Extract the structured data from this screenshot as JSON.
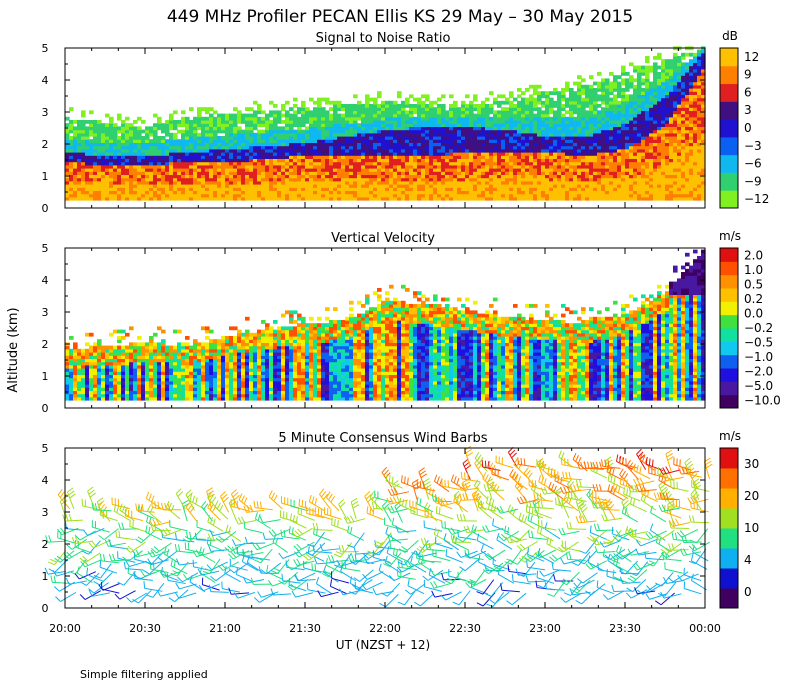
{
  "title": "449 MHz Profiler PECAN Ellis KS 29 May – 30 May 2015",
  "ylabel": "Altitude (km)",
  "xlabel": "UT  (NZST + 12)",
  "note": "Simple filtering applied",
  "x_ticks": [
    "20:00",
    "20:30",
    "21:00",
    "21:30",
    "22:00",
    "22:30",
    "23:00",
    "23:30",
    "00:00"
  ],
  "y_ticks": [
    "0",
    "1",
    "2",
    "3",
    "4",
    "5"
  ],
  "colors": {
    "snr": [
      "#80f020",
      "#30d070",
      "#10b8f0",
      "#0a60f0",
      "#2010d0",
      "#401080",
      "#e02020",
      "#ff8000",
      "#ffc000"
    ],
    "vv": [
      "#400060",
      "#4818a0",
      "#2010e0",
      "#1060f0",
      "#10c8f0",
      "#10e0a0",
      "#40e040",
      "#f0f000",
      "#ffc000",
      "#ff9000",
      "#ff5000",
      "#e01010"
    ],
    "wind": [
      "#400060",
      "#1010d0",
      "#10b0f0",
      "#20e080",
      "#a0e020",
      "#ffb000",
      "#ff7000",
      "#e01010"
    ]
  },
  "chart_data": [
    {
      "type": "heatmap",
      "title": "Signal to Noise Ratio",
      "xlabel": "UT  (NZST + 12)",
      "ylabel": "Altitude (km)",
      "x_range": [
        0,
        240
      ],
      "x_unit": "minutes after 20:00 UT",
      "ylim": [
        0,
        5
      ],
      "colorbar": {
        "unit": "dB",
        "labels": [
          "12",
          "9",
          "6",
          "3",
          "0",
          "−3",
          "−6",
          "−9",
          "−12"
        ],
        "values": [
          12,
          9,
          6,
          3,
          0,
          -3,
          -6,
          -9,
          -12
        ]
      },
      "layer_tops_km": {
        "x_min": [
          0,
          15,
          30,
          45,
          60,
          75,
          90,
          105,
          120,
          135,
          150,
          165,
          180,
          195,
          210,
          225,
          240
        ],
        "strong_echo_top": [
          1.4,
          1.3,
          1.3,
          1.4,
          1.4,
          1.5,
          1.6,
          1.6,
          1.6,
          1.6,
          1.7,
          1.7,
          1.7,
          1.6,
          1.8,
          2.6,
          4.5
        ],
        "medium_echo_top": [
          1.7,
          1.6,
          1.6,
          1.7,
          1.8,
          1.9,
          2.0,
          2.2,
          2.4,
          2.5,
          2.5,
          2.4,
          2.2,
          2.2,
          2.6,
          3.5,
          5.0
        ],
        "weak_echo_top": [
          2.8,
          2.6,
          2.5,
          2.8,
          2.9,
          3.0,
          3.1,
          3.2,
          3.3,
          3.2,
          3.2,
          3.3,
          3.6,
          3.8,
          4.2,
          4.6,
          5.0
        ]
      }
    },
    {
      "type": "heatmap",
      "title": "Vertical Velocity",
      "xlabel": "UT  (NZST + 12)",
      "ylabel": "Altitude (km)",
      "x_range": [
        0,
        240
      ],
      "x_unit": "minutes after 20:00 UT",
      "ylim": [
        0,
        5
      ],
      "colorbar": {
        "unit": "m/s",
        "labels": [
          "2.0",
          "1.0",
          "0.5",
          "0.2",
          "0.0",
          "−0.2",
          "−0.5",
          "−1.0",
          "−2.0",
          "−5.0",
          "−10.0"
        ],
        "values": [
          2.0,
          1.0,
          0.5,
          0.2,
          0.0,
          -0.2,
          -0.5,
          -1.0,
          -2.0,
          -5.0,
          -10.0
        ]
      },
      "data_top_km": {
        "x_min": [
          0,
          15,
          30,
          45,
          60,
          75,
          90,
          105,
          120,
          135,
          150,
          165,
          180,
          195,
          210,
          225,
          240
        ],
        "top": [
          1.8,
          1.9,
          2.0,
          1.9,
          2.2,
          2.4,
          2.6,
          2.7,
          3.3,
          3.2,
          3.0,
          2.8,
          2.7,
          2.6,
          2.9,
          3.6,
          5.0
        ]
      }
    },
    {
      "type": "scatter",
      "title": "5 Minute Consensus Wind Barbs",
      "xlabel": "UT  (NZST + 12)",
      "ylabel": "Altitude (km)",
      "x_range": [
        0,
        240
      ],
      "x_unit": "minutes after 20:00 UT",
      "ylim": [
        0,
        5
      ],
      "colorbar": {
        "unit": "m/s",
        "labels": [
          "30",
          "20",
          "10",
          "4",
          "0"
        ],
        "values": [
          30,
          20,
          10,
          4,
          0
        ]
      },
      "speed_profile": {
        "altitude_km": [
          0.5,
          1.0,
          1.5,
          2.0,
          2.5,
          3.0,
          3.5,
          4.0,
          4.5
        ],
        "typical_speed_ms": [
          5,
          6,
          7,
          8,
          10,
          14,
          17,
          19,
          21
        ]
      }
    }
  ]
}
